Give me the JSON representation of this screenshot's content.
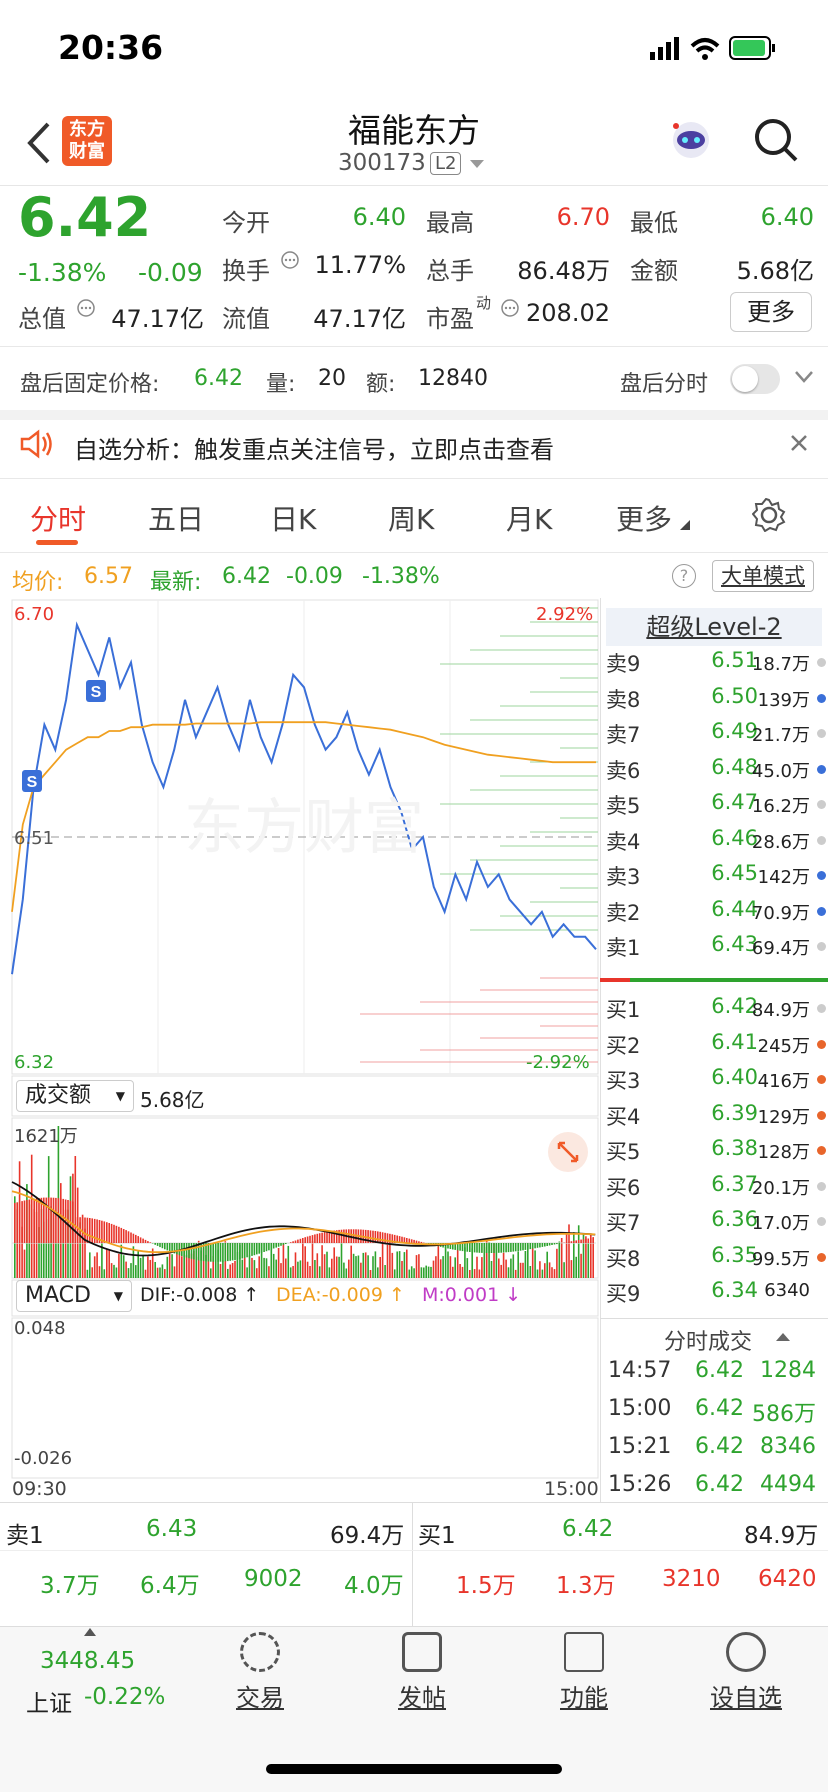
{
  "status": {
    "time": "20:36"
  },
  "header": {
    "logo_line1": "东方",
    "logo_line2": "财富",
    "stock_name": "福能东方",
    "stock_code": "300173",
    "level_badge": "L2"
  },
  "quote": {
    "price": "6.42",
    "change_pct": "-1.38%",
    "change": "-0.09",
    "stats": [
      {
        "label": "今开",
        "value": "6.40"
      },
      {
        "label": "最高",
        "value": "6.70"
      },
      {
        "label": "最低",
        "value": "6.40"
      },
      {
        "label": "换手",
        "value": "11.77%"
      },
      {
        "label": "总手",
        "value": "86.48万"
      },
      {
        "label": "金额",
        "value": "5.68亿"
      },
      {
        "label": "总值",
        "value": "47.17亿"
      },
      {
        "label": "流值",
        "value": "47.17亿"
      },
      {
        "label": "市盈",
        "label_sup": "动",
        "value": "208.02"
      }
    ],
    "more_label": "更多"
  },
  "after_hours": {
    "label": "盘后固定价格:",
    "price": "6.42",
    "vol_label": "量:",
    "vol": "20",
    "amt_label": "额:",
    "amt": "12840",
    "toggle_label": "盘后分时"
  },
  "banner": {
    "text": "自选分析：触发重点关注信号，立即点击查看"
  },
  "tabs": [
    "分时",
    "五日",
    "日K",
    "周K",
    "月K",
    "更多"
  ],
  "chart_header": {
    "avg_label": "均价:",
    "avg_value": "6.57",
    "latest_label": "最新:",
    "latest_price": "6.42",
    "latest_change": "-0.09",
    "latest_pct": "-1.38%",
    "mode_label": "大单模式",
    "help_label": "?"
  },
  "chart_data": [
    {
      "type": "line",
      "title": "",
      "ylim": [
        6.32,
        6.7
      ],
      "y_tick_labels": {
        "top": "6.70",
        "mid": "6.51",
        "bottom": "6.32",
        "top_pct": "2.92%",
        "bottom_pct": "-2.92%"
      },
      "baseline": 6.51,
      "series": [
        {
          "name": "",
          "values": [
            6.4,
            6.46,
            6.55,
            6.6,
            6.58,
            6.62,
            6.68,
            6.66,
            6.64,
            6.67,
            6.63,
            6.65,
            6.6,
            6.57,
            6.55,
            6.58,
            6.62,
            6.59,
            6.61,
            6.63,
            6.6,
            6.58,
            6.62,
            6.59,
            6.57,
            6.6,
            6.64,
            6.63,
            6.6,
            6.58,
            6.59,
            6.61,
            6.58,
            6.56,
            6.58,
            6.55,
            6.53,
            6.5,
            6.51,
            6.47,
            6.45,
            6.48,
            6.46,
            6.49,
            6.47,
            6.48,
            6.46,
            6.45,
            6.44,
            6.45,
            6.43,
            6.44,
            6.43,
            6.43,
            6.42
          ]
        },
        {
          "name": "",
          "values": [
            6.45,
            6.52,
            6.55,
            6.56,
            6.57,
            6.58,
            6.585,
            6.59,
            6.59,
            6.595,
            6.595,
            6.598,
            6.598,
            6.6,
            6.6,
            6.6,
            6.6,
            6.601,
            6.601,
            6.601,
            6.601,
            6.601,
            6.601,
            6.602,
            6.602,
            6.602,
            6.602,
            6.602,
            6.602,
            6.602,
            6.601,
            6.6,
            6.599,
            6.598,
            6.597,
            6.596,
            6.594,
            6.592,
            6.59,
            6.587,
            6.584,
            6.582,
            6.58,
            6.578,
            6.576,
            6.575,
            6.574,
            6.573,
            6.572,
            6.571,
            6.57,
            6.57,
            6.57,
            6.57,
            6.57
          ]
        }
      ],
      "markers": [
        "S",
        "S"
      ]
    },
    {
      "type": "bar",
      "title": "成交额",
      "total": "5.68亿",
      "ymax_label": "1621万"
    },
    {
      "type": "bar",
      "title": "MACD",
      "dif": "DIF:-0.008 ↑",
      "dea": "DEA:-0.009 ↑",
      "m": "M:0.001 ↓",
      "ymax_label": "0.048",
      "ymin_label": "-0.026",
      "x_start": "09:30",
      "x_end": "15:00"
    }
  ],
  "orderbook": {
    "title": "超级Level-2",
    "asks": [
      {
        "name": "卖9",
        "price": "6.51",
        "qty": "18.7万",
        "dot": "#cccccc"
      },
      {
        "name": "卖8",
        "price": "6.50",
        "qty": "139万",
        "dot": "#3a6fd8"
      },
      {
        "name": "卖7",
        "price": "6.49",
        "qty": "21.7万",
        "dot": "#cccccc"
      },
      {
        "name": "卖6",
        "price": "6.48",
        "qty": "45.0万",
        "dot": "#3a6fd8"
      },
      {
        "name": "卖5",
        "price": "6.47",
        "qty": "16.2万",
        "dot": "#cccccc"
      },
      {
        "name": "卖4",
        "price": "6.46",
        "qty": "28.6万",
        "dot": "#cccccc"
      },
      {
        "name": "卖3",
        "price": "6.45",
        "qty": "142万",
        "dot": "#3a6fd8"
      },
      {
        "name": "卖2",
        "price": "6.44",
        "qty": "70.9万",
        "dot": "#3a6fd8"
      },
      {
        "name": "卖1",
        "price": "6.43",
        "qty": "69.4万",
        "dot": "#cccccc"
      }
    ],
    "bids": [
      {
        "name": "买1",
        "price": "6.42",
        "qty": "84.9万",
        "dot": "#cccccc"
      },
      {
        "name": "买2",
        "price": "6.41",
        "qty": "245万",
        "dot": "#e8652b"
      },
      {
        "name": "买3",
        "price": "6.40",
        "qty": "416万",
        "dot": "#e8652b"
      },
      {
        "name": "买4",
        "price": "6.39",
        "qty": "129万",
        "dot": "#e8652b"
      },
      {
        "name": "买5",
        "price": "6.38",
        "qty": "128万",
        "dot": "#e8652b"
      },
      {
        "name": "买6",
        "price": "6.37",
        "qty": "20.1万",
        "dot": "#cccccc"
      },
      {
        "name": "买7",
        "price": "6.36",
        "qty": "17.0万",
        "dot": "#cccccc"
      },
      {
        "name": "买8",
        "price": "6.35",
        "qty": "99.5万",
        "dot": "#e8652b"
      },
      {
        "name": "买9",
        "price": "6.34",
        "qty": "6340",
        "dot": ""
      }
    ],
    "trades_title": "分时成交",
    "trades": [
      {
        "time": "14:57",
        "price": "6.42",
        "vol": "1284"
      },
      {
        "time": "15:00",
        "price": "6.42",
        "vol": "586万"
      },
      {
        "time": "15:21",
        "price": "6.42",
        "vol": "8346"
      },
      {
        "time": "15:26",
        "price": "6.42",
        "vol": "4494"
      }
    ]
  },
  "bottom_book": {
    "sell_label": "卖1",
    "sell_price": "6.43",
    "sell_qty": "69.4万",
    "buy_label": "买1",
    "buy_price": "6.42",
    "buy_qty": "84.9万",
    "sell_row": [
      "3.7万",
      "6.4万",
      "9002",
      "4.0万"
    ],
    "buy_row": [
      "1.5万",
      "1.3万",
      "3210",
      "6420"
    ]
  },
  "bottom_nav": {
    "index_value": "3448.45",
    "index_name": "上证",
    "index_change": "-0.22%",
    "items": [
      "交易",
      "发帖",
      "功能",
      "设自选"
    ]
  }
}
